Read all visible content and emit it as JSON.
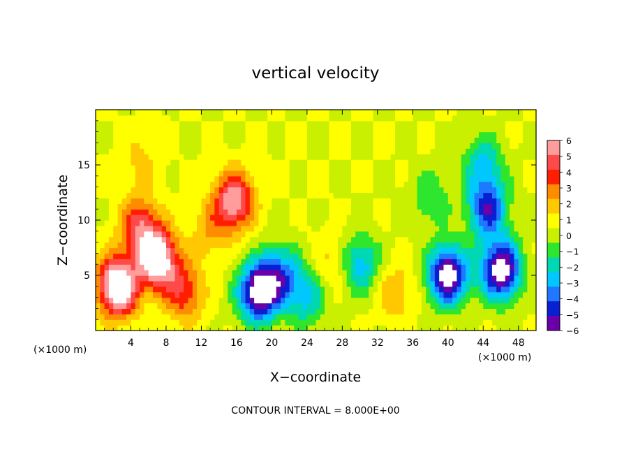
{
  "chart_data": {
    "type": "heatmap",
    "title": "vertical velocity",
    "xlabel": "X−coordinate",
    "ylabel": "Z−coordinate",
    "x_unit_left": "(×1000 m)",
    "x_unit_right": "(×1000 m)",
    "footer": "CONTOUR INTERVAL = 8.000E+00",
    "xlim": [
      0,
      50
    ],
    "ylim": [
      0,
      20
    ],
    "x_ticks": [
      4,
      8,
      12,
      16,
      20,
      24,
      28,
      32,
      36,
      40,
      44,
      48
    ],
    "x_tick_labels": [
      "4",
      "8",
      "12",
      "16",
      "20",
      "24",
      "28",
      "32",
      "36",
      "40",
      "44",
      "48"
    ],
    "y_ticks": [
      5,
      10,
      15
    ],
    "y_tick_labels": [
      "5",
      "10",
      "15"
    ],
    "colorbar": {
      "min": -6,
      "max": 6,
      "labels": [
        "6",
        "5",
        "4",
        "3",
        "2",
        "1",
        "0",
        "−1",
        "−2",
        "−3",
        "−4",
        "−5",
        "−6"
      ],
      "colors": [
        "#ff9c9c",
        "#ff4a4a",
        "#ff1e00",
        "#ff8c00",
        "#ffc800",
        "#ffff00",
        "#c8f000",
        "#2ee62e",
        "#00d8b4",
        "#00c8ff",
        "#1f78ff",
        "#0a1ed2",
        "#6a00aa"
      ]
    },
    "background_value": 0.5,
    "features": [
      {
        "x": 2.5,
        "z": 4.0,
        "w": 7.0
      },
      {
        "x": 7.0,
        "z": 6.5,
        "w": 6.5
      },
      {
        "x": 5.0,
        "z": 9.5,
        "w": 3.5
      },
      {
        "x": 10.0,
        "z": 3.5,
        "w": 3.0
      },
      {
        "x": 15.7,
        "z": 11.8,
        "w": 4.8
      },
      {
        "x": 13.0,
        "z": 9.0,
        "w": 1.5
      },
      {
        "x": 5.0,
        "z": 15.5,
        "w": 1.0
      },
      {
        "x": 18.5,
        "z": 3.5,
        "w": -6.5
      },
      {
        "x": 21.0,
        "z": 5.0,
        "w": -3.5
      },
      {
        "x": 24.0,
        "z": 3.0,
        "w": -2.5
      },
      {
        "x": 30.0,
        "z": 6.0,
        "w": -3.0
      },
      {
        "x": 40.0,
        "z": 5.0,
        "w": -6.5
      },
      {
        "x": 46.0,
        "z": 5.5,
        "w": -6.5
      },
      {
        "x": 44.5,
        "z": 11.0,
        "w": -4.5
      },
      {
        "x": 44.0,
        "z": 15.0,
        "w": -2.5
      },
      {
        "x": 38.0,
        "z": 12.0,
        "w": -1.5
      },
      {
        "x": 34.0,
        "z": 3.5,
        "w": 1.5
      },
      {
        "x": 27.0,
        "z": 6.0,
        "w": 1.2
      }
    ]
  }
}
